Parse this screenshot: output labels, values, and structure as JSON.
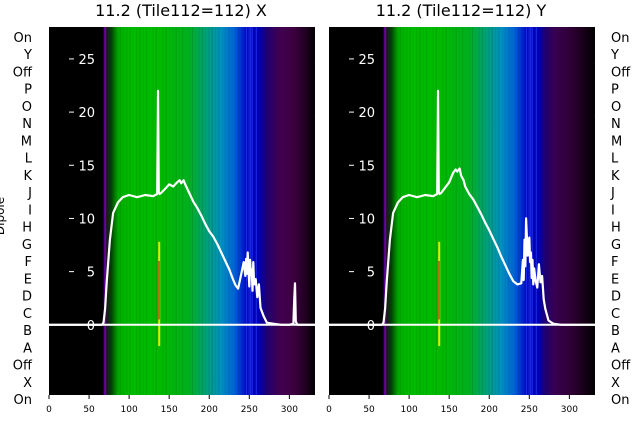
{
  "chart_data": [
    {
      "type": "line",
      "title": "11.2 (Tile112=112) X",
      "ylabel": "Dipole",
      "dipole_labels": [
        "On",
        "Y",
        "Off",
        "P",
        "O",
        "N",
        "M",
        "L",
        "K",
        "J",
        "I",
        "H",
        "G",
        "F",
        "E",
        "D",
        "C",
        "B",
        "A",
        "Off",
        "X",
        "On"
      ],
      "xticks": [
        0,
        50,
        100,
        150,
        200,
        250,
        300
      ],
      "yticks": [
        0,
        5,
        10,
        15,
        20,
        25
      ],
      "xlim": [
        0,
        332
      ],
      "ylim": [
        -6.6,
        28
      ],
      "spectrum_stops": [
        {
          "x": 0,
          "color": "#000000"
        },
        {
          "x": 67,
          "color": "#000000"
        },
        {
          "x": 68,
          "color": "#1a0026"
        },
        {
          "x": 70,
          "color": "#7a00c8"
        },
        {
          "x": 72,
          "color": "#1a1a1a"
        },
        {
          "x": 78,
          "color": "#004400"
        },
        {
          "x": 86,
          "color": "#00aa00"
        },
        {
          "x": 100,
          "color": "#00bb00"
        },
        {
          "x": 140,
          "color": "#00bb00"
        },
        {
          "x": 175,
          "color": "#00b020"
        },
        {
          "x": 198,
          "color": "#00a080"
        },
        {
          "x": 215,
          "color": "#0090c0"
        },
        {
          "x": 232,
          "color": "#0060d8"
        },
        {
          "x": 248,
          "color": "#0000c8"
        },
        {
          "x": 262,
          "color": "#0000b8"
        },
        {
          "x": 272,
          "color": "#200070"
        },
        {
          "x": 288,
          "color": "#400050"
        },
        {
          "x": 305,
          "color": "#3c0040"
        },
        {
          "x": 320,
          "color": "#200022"
        },
        {
          "x": 332,
          "color": "#000000"
        }
      ],
      "series": [
        {
          "x": [
            0,
            66,
            68,
            70,
            72,
            76,
            80,
            86,
            92,
            100,
            110,
            120,
            130,
            135,
            136,
            137,
            138,
            140,
            145,
            150,
            155,
            160,
            163,
            165,
            168,
            170,
            175,
            180,
            185,
            190,
            195,
            200,
            205,
            210,
            215,
            220,
            225,
            230,
            233,
            236,
            240,
            243,
            245,
            246,
            247,
            248,
            250,
            251,
            252,
            253,
            254,
            255,
            256,
            258,
            260,
            262,
            264,
            268,
            272,
            280,
            290,
            300,
            305,
            306,
            307,
            308,
            310,
            320,
            332
          ],
          "y": [
            0,
            0,
            0.2,
            1.5,
            4,
            8,
            10.5,
            11.5,
            12,
            12.2,
            12,
            12.2,
            12.1,
            12.3,
            22,
            12.5,
            12.3,
            12.4,
            12.8,
            13.2,
            13,
            13.4,
            13.6,
            13.3,
            13.6,
            13.2,
            12.4,
            11.6,
            11,
            10.3,
            9.5,
            8.8,
            8.3,
            7.6,
            6.8,
            6,
            5.2,
            4.2,
            3.7,
            3.4,
            4.8,
            5.9,
            4.6,
            6.2,
            4.8,
            6.8,
            3.6,
            6.1,
            4.7,
            5.2,
            3.2,
            5.9,
            3.8,
            4.3,
            2.6,
            3.8,
            1.6,
            0.8,
            0.2,
            0.1,
            0,
            0,
            0.1,
            2.3,
            3.9,
            0.3,
            0,
            0,
            0
          ]
        }
      ]
    },
    {
      "type": "line",
      "title": "11.2 (Tile112=112) Y",
      "ylabel": "",
      "dipole_labels": [
        "On",
        "Y",
        "Off",
        "P",
        "O",
        "N",
        "M",
        "L",
        "K",
        "J",
        "I",
        "H",
        "G",
        "F",
        "E",
        "D",
        "C",
        "B",
        "A",
        "Off",
        "X",
        "On"
      ],
      "xticks": [
        0,
        50,
        100,
        150,
        200,
        250,
        300
      ],
      "yticks": [
        0,
        5,
        10,
        15,
        20,
        25
      ],
      "xlim": [
        0,
        332
      ],
      "ylim": [
        -6.6,
        28
      ],
      "spectrum_stops": [
        {
          "x": 0,
          "color": "#000000"
        },
        {
          "x": 67,
          "color": "#000000"
        },
        {
          "x": 68,
          "color": "#1a0026"
        },
        {
          "x": 70,
          "color": "#7a00c8"
        },
        {
          "x": 72,
          "color": "#1a1a1a"
        },
        {
          "x": 78,
          "color": "#004400"
        },
        {
          "x": 86,
          "color": "#00aa00"
        },
        {
          "x": 100,
          "color": "#00bb00"
        },
        {
          "x": 140,
          "color": "#00bb00"
        },
        {
          "x": 175,
          "color": "#00b020"
        },
        {
          "x": 198,
          "color": "#00a080"
        },
        {
          "x": 215,
          "color": "#0090c0"
        },
        {
          "x": 232,
          "color": "#0060d8"
        },
        {
          "x": 248,
          "color": "#0000c8"
        },
        {
          "x": 262,
          "color": "#0000b8"
        },
        {
          "x": 270,
          "color": "#200070"
        },
        {
          "x": 282,
          "color": "#380050"
        },
        {
          "x": 300,
          "color": "#300038"
        },
        {
          "x": 318,
          "color": "#180018"
        },
        {
          "x": 332,
          "color": "#000000"
        }
      ],
      "series": [
        {
          "x": [
            0,
            66,
            68,
            70,
            72,
            76,
            80,
            86,
            92,
            100,
            110,
            120,
            130,
            135,
            136,
            137,
            138,
            140,
            145,
            150,
            155,
            158,
            160,
            163,
            165,
            168,
            170,
            175,
            180,
            185,
            190,
            195,
            200,
            205,
            210,
            215,
            220,
            225,
            230,
            235,
            240,
            242,
            243,
            244,
            245,
            246,
            248,
            250,
            251,
            252,
            253,
            254,
            255,
            256,
            258,
            260,
            262,
            264,
            266,
            268,
            270,
            274,
            280,
            290,
            300,
            310,
            320,
            332
          ],
          "y": [
            0,
            0,
            0.2,
            1.5,
            4,
            8,
            10.5,
            11.5,
            12,
            12.2,
            12,
            12.2,
            12.1,
            12.3,
            22,
            12.5,
            12.3,
            12.4,
            12.9,
            13.4,
            14.3,
            14.6,
            14.4,
            14.7,
            14,
            13.6,
            13,
            12.3,
            11.8,
            11.1,
            10.4,
            9.6,
            8.9,
            8.1,
            7.3,
            6.4,
            5.6,
            4.8,
            4.1,
            3.8,
            3.9,
            6.1,
            4.2,
            8,
            5.5,
            10,
            6.5,
            8.2,
            5.9,
            6.8,
            4.4,
            6.1,
            3.8,
            5.3,
            4.1,
            3.5,
            5.7,
            4,
            4.6,
            2.4,
            1.5,
            0.4,
            0.1,
            0,
            0,
            0,
            0,
            0
          ]
        }
      ]
    }
  ]
}
